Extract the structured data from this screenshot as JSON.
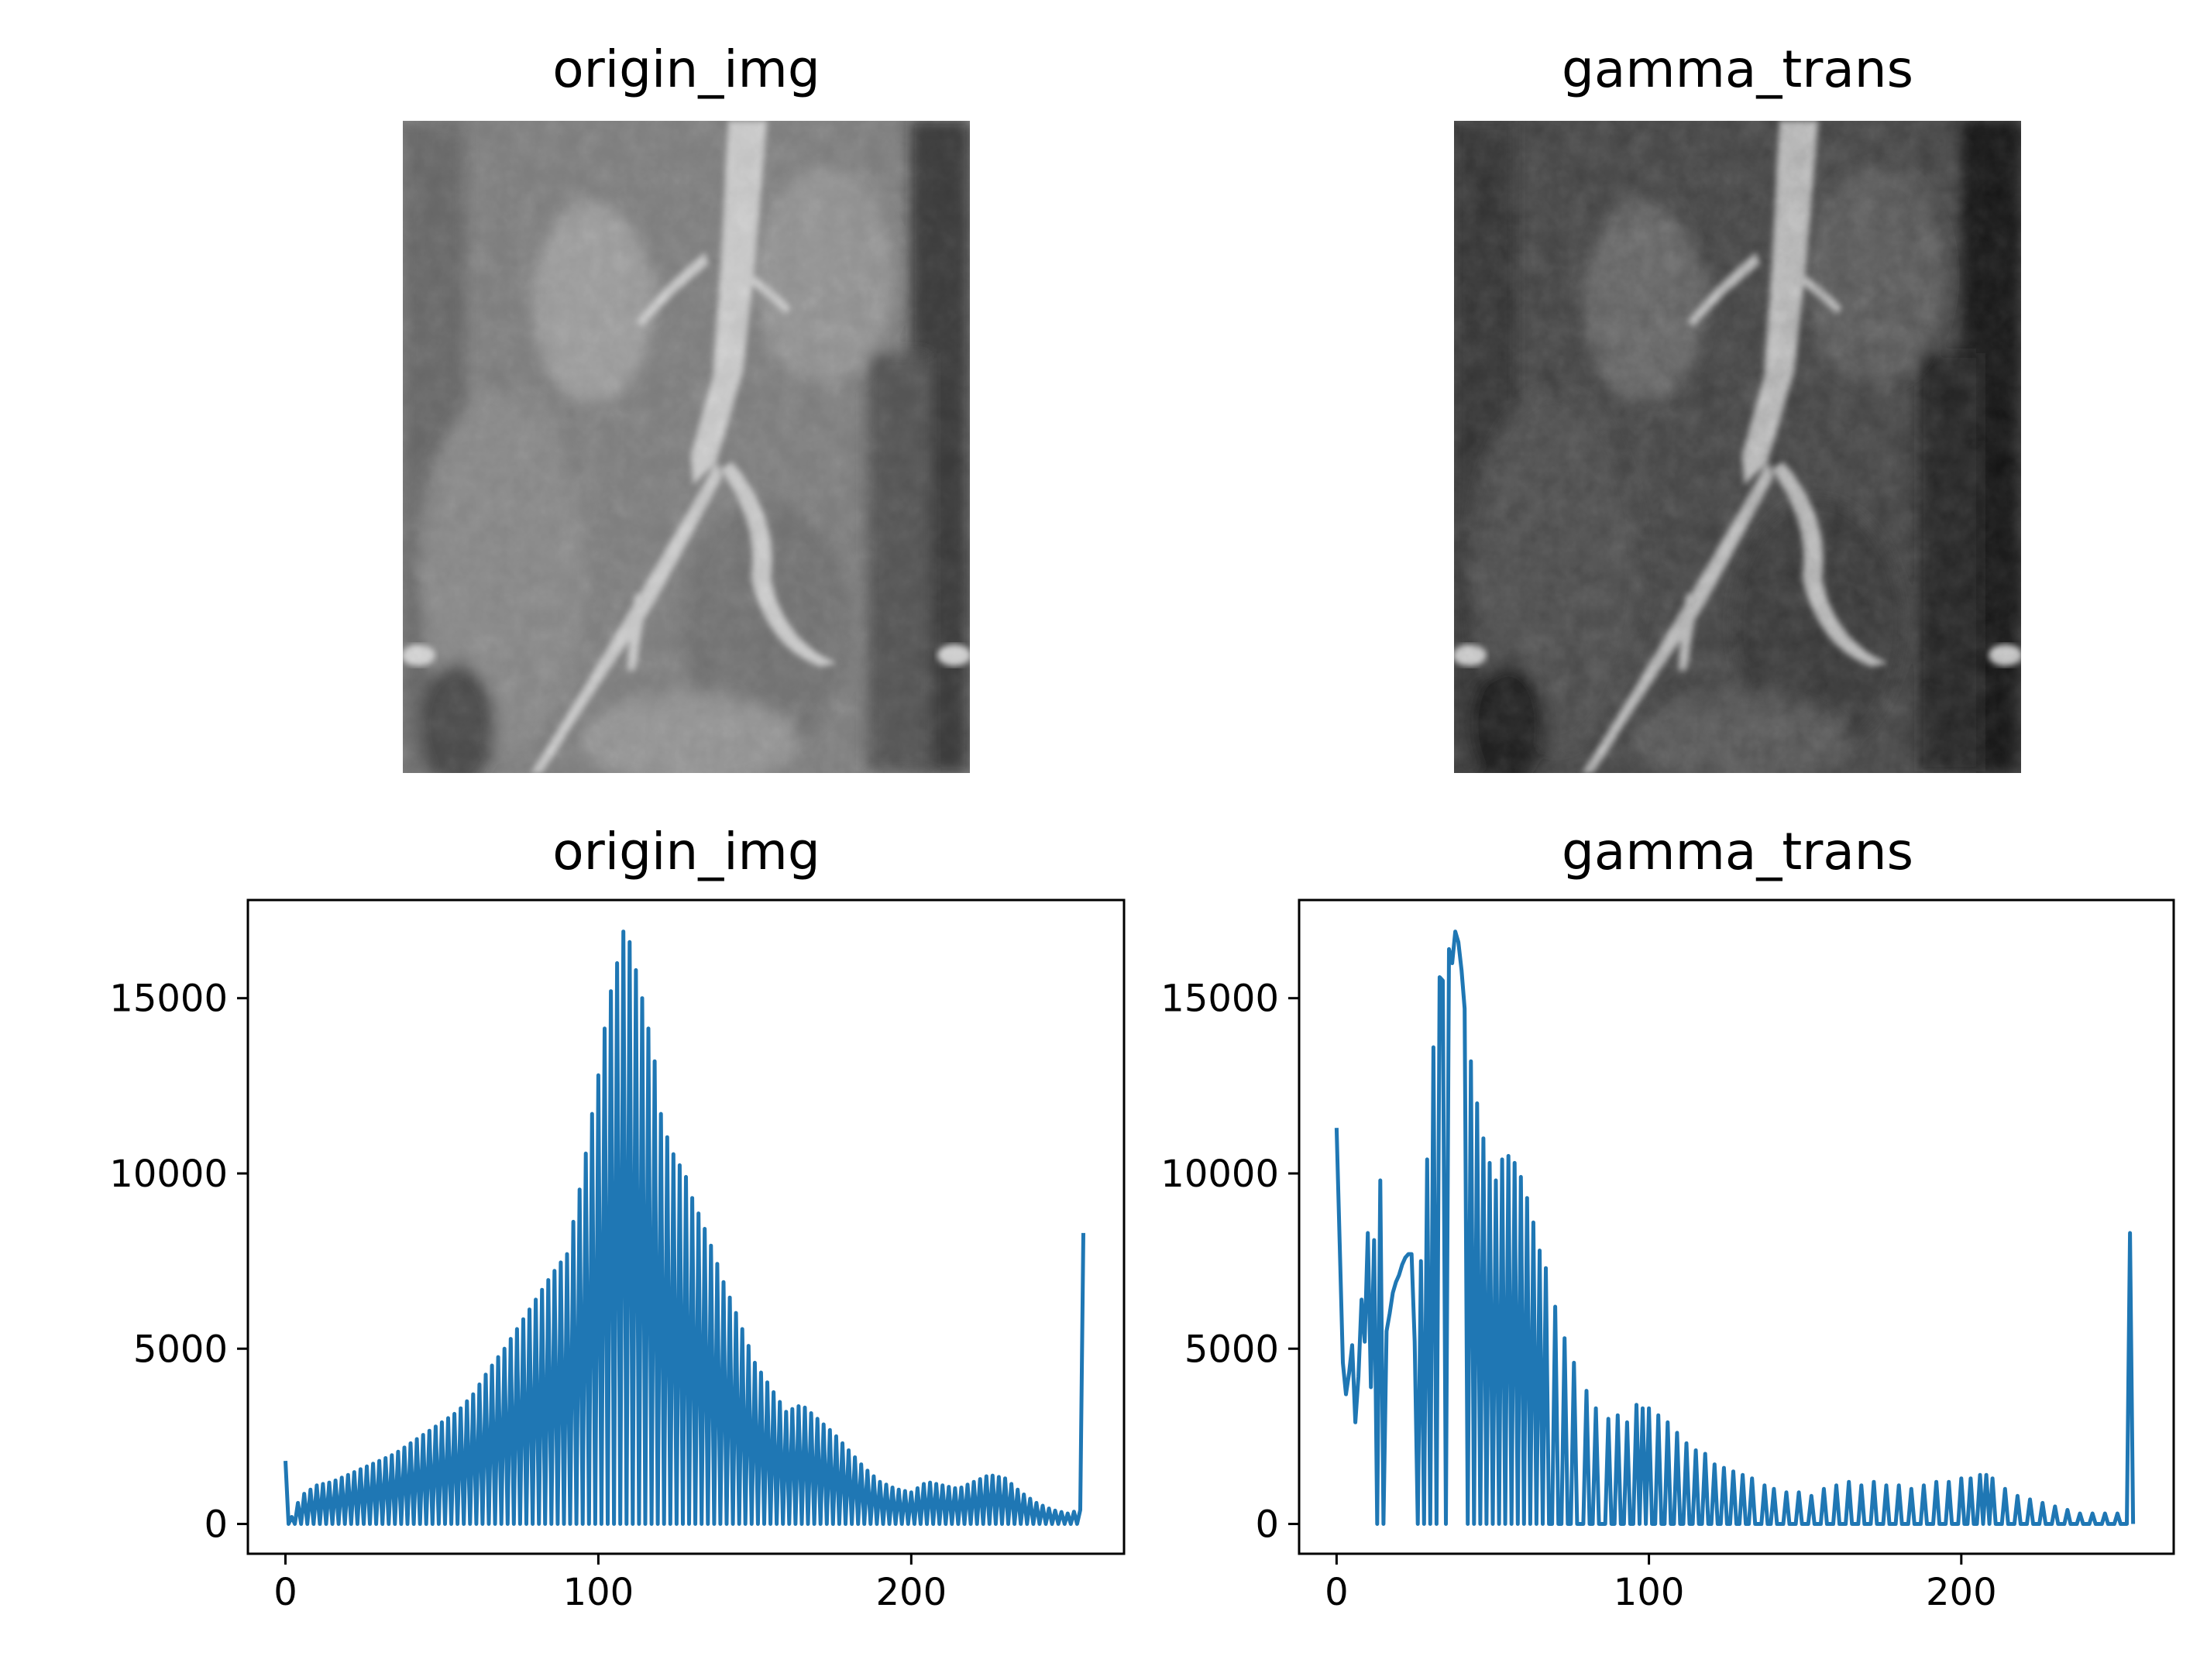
{
  "images": [
    {
      "title": "origin_img",
      "tone": "origin"
    },
    {
      "title": "gamma_trans",
      "tone": "gamma"
    }
  ],
  "colors": {
    "line": "#1f77b4",
    "axes": "#000000",
    "background": "#ffffff"
  },
  "chart_data": [
    {
      "type": "line",
      "title": "origin_img",
      "xlabel": "",
      "ylabel": "",
      "xlim": [
        -12,
        268
      ],
      "ylim": [
        -850,
        17800
      ],
      "xticks": [
        0,
        100,
        200
      ],
      "yticks": [
        0,
        5000,
        10000,
        15000
      ],
      "grid": false,
      "legend": "none",
      "series": [
        {
          "description": "256-bin pixel intensity histogram; alternating bins are near zero, envelope shown",
          "x": [
            0,
            1,
            5,
            10,
            15,
            20,
            25,
            30,
            35,
            40,
            45,
            50,
            55,
            60,
            65,
            70,
            75,
            80,
            85,
            90,
            95,
            98,
            100,
            103,
            105,
            107,
            108,
            110,
            113,
            115,
            118,
            120,
            123,
            125,
            128,
            130,
            135,
            140,
            145,
            150,
            155,
            160,
            165,
            170,
            175,
            180,
            185,
            190,
            195,
            200,
            205,
            210,
            215,
            220,
            225,
            230,
            235,
            240,
            245,
            250,
            254,
            255
          ],
          "envelope": [
            1800,
            0,
            800,
            1100,
            1200,
            1400,
            1600,
            1800,
            2000,
            2300,
            2600,
            2900,
            3200,
            3700,
            4400,
            5000,
            5700,
            6400,
            7100,
            7700,
            10000,
            11700,
            12800,
            14800,
            15600,
            16400,
            16900,
            16600,
            15400,
            14600,
            13200,
            11700,
            10700,
            10400,
            9900,
            9300,
            8200,
            6900,
            5800,
            4600,
            3900,
            3200,
            3400,
            3000,
            2600,
            2100,
            1600,
            1200,
            1000,
            900,
            1200,
            1100,
            1000,
            1200,
            1400,
            1300,
            900,
            600,
            400,
            300,
            400,
            8300
          ],
          "minimum": 0
        }
      ]
    },
    {
      "type": "line",
      "title": "gamma_trans",
      "xlabel": "",
      "ylabel": "",
      "xlim": [
        -12,
        268
      ],
      "ylim": [
        -850,
        17800
      ],
      "xticks": [
        0,
        100,
        200
      ],
      "yticks": [
        0,
        5000,
        10000,
        15000
      ],
      "grid": false,
      "legend": "none",
      "series": [
        {
          "description": "256-bin histogram after gamma transform; sparse spikes with zero bins between",
          "x": [
            0,
            1,
            2,
            3,
            4,
            5,
            6,
            7,
            8,
            9,
            10,
            11,
            12,
            13,
            14,
            15,
            16,
            17,
            18,
            19,
            20,
            21,
            22,
            23,
            24,
            25,
            26
          ],
          "y": [
            11300,
            8000,
            4600,
            3700,
            4300,
            5100,
            2900,
            4200,
            6400,
            5200,
            8300,
            3900,
            8100,
            0,
            9800,
            0,
            5500,
            6000,
            6600,
            6900,
            7100,
            7400,
            7600,
            7700,
            7700,
            5200,
            0
          ],
          "spike_x": [
            27,
            29,
            31,
            33,
            34,
            36,
            37,
            38,
            39,
            40,
            41,
            43,
            45,
            47,
            49,
            51,
            53,
            55,
            57,
            59,
            61,
            63,
            65,
            67,
            70,
            73,
            76,
            80,
            83,
            87,
            90,
            93,
            96,
            98,
            100,
            103,
            106,
            109,
            112,
            115,
            118,
            121,
            124,
            127,
            130,
            133,
            137,
            140,
            144,
            148,
            152,
            156,
            160,
            164,
            168,
            172,
            176,
            180,
            184,
            188,
            192,
            196,
            200,
            203,
            206,
            208,
            210,
            214,
            218,
            222,
            226,
            230,
            234,
            238,
            242,
            246,
            250,
            254
          ],
          "spike_y": [
            7500,
            10400,
            13600,
            15600,
            15500,
            16400,
            16000,
            16900,
            16600,
            15800,
            14700,
            13200,
            12000,
            11000,
            10300,
            9800,
            10400,
            10500,
            10300,
            9900,
            9300,
            8600,
            7800,
            7300,
            6200,
            5300,
            4600,
            3800,
            3300,
            3000,
            3100,
            2900,
            3400,
            3300,
            3300,
            3100,
            2900,
            2600,
            2300,
            2100,
            2000,
            1700,
            1600,
            1500,
            1400,
            1300,
            1100,
            1000,
            900,
            900,
            800,
            1000,
            1100,
            1200,
            1100,
            1200,
            1100,
            1100,
            1000,
            1100,
            1200,
            1200,
            1300,
            1300,
            1400,
            1400,
            1300,
            1000,
            800,
            700,
            600,
            500,
            400,
            300,
            300,
            300,
            300,
            8300
          ]
        }
      ]
    }
  ]
}
